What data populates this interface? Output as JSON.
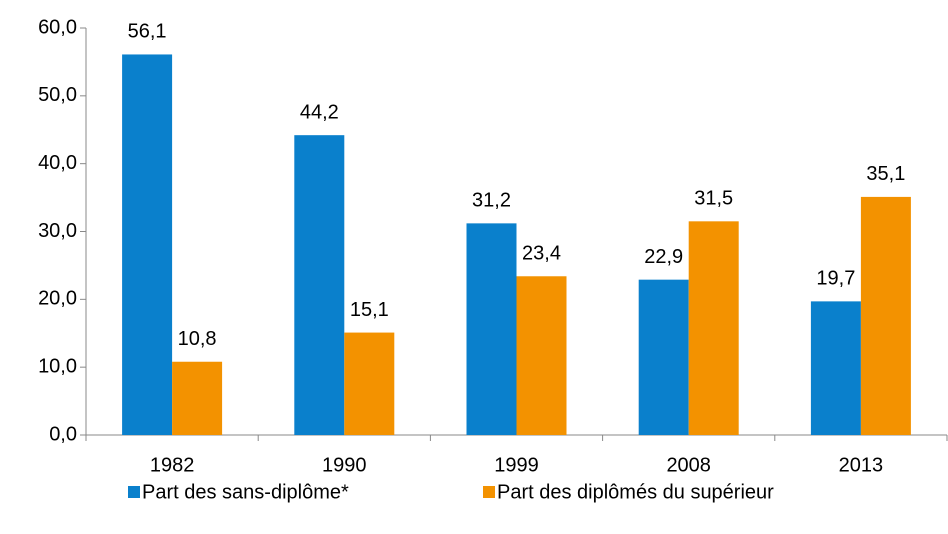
{
  "chart_data": {
    "type": "bar",
    "categories": [
      "1982",
      "1990",
      "1999",
      "2008",
      "2013"
    ],
    "series": [
      {
        "name": "Part des sans-diplôme*",
        "color": "#0a80cc",
        "values": [
          56.1,
          44.2,
          31.2,
          22.9,
          19.7
        ],
        "value_labels": [
          "56,1",
          "44,2",
          "31,2",
          "22,9",
          "19,7"
        ]
      },
      {
        "name": "Part des diplômés du supérieur",
        "color": "#f39200",
        "values": [
          10.8,
          15.1,
          23.4,
          31.5,
          35.1
        ],
        "value_labels": [
          "10,8",
          "15,1",
          "23,4",
          "31,5",
          "35,1"
        ]
      }
    ],
    "ylim": [
      0,
      60
    ],
    "yticks": [
      {
        "value": 0,
        "label": "0,0"
      },
      {
        "value": 10,
        "label": "10,0"
      },
      {
        "value": 20,
        "label": "20,0"
      },
      {
        "value": 30,
        "label": "30,0"
      },
      {
        "value": 40,
        "label": "40,0"
      },
      {
        "value": 50,
        "label": "50,0"
      },
      {
        "value": 60,
        "label": "60,0"
      }
    ],
    "grid": false,
    "legend": "bottom"
  }
}
